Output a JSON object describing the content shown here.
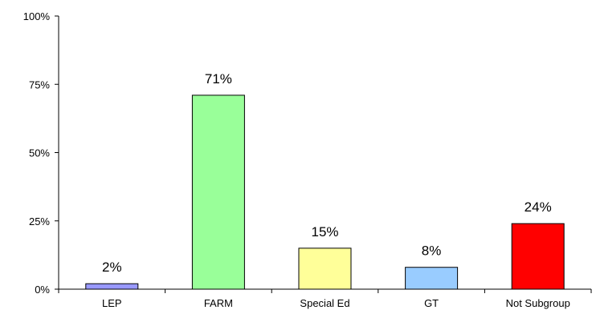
{
  "chart_data": {
    "type": "bar",
    "categories": [
      "LEP",
      "FARM",
      "Special Ed",
      "GT",
      "Not Subgroup"
    ],
    "values": [
      2,
      71,
      15,
      8,
      24
    ],
    "value_labels": [
      "2%",
      "71%",
      "15%",
      "8%",
      "24%"
    ],
    "colors": [
      "#9999ff",
      "#99ff99",
      "#ffff99",
      "#99ccff",
      "#ff0000"
    ],
    "yticks": [
      0,
      25,
      50,
      75,
      100
    ],
    "ytick_labels": [
      "0%",
      "25%",
      "50%",
      "75%",
      "100%"
    ],
    "ylim": [
      0,
      100
    ],
    "grid": false,
    "legend": "none"
  }
}
